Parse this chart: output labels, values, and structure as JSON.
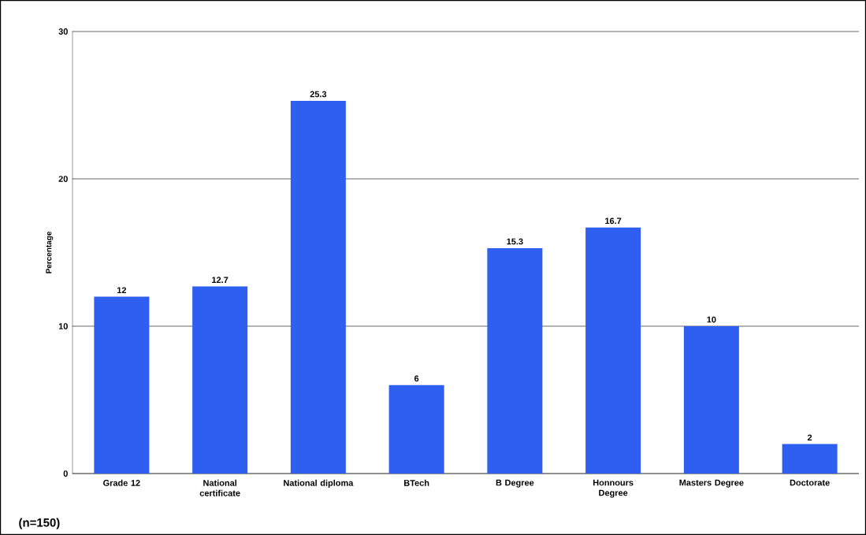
{
  "chart_data": {
    "type": "bar",
    "ylabel": "Percentage",
    "categories": [
      "Grade 12",
      "National certificate",
      "National diploma",
      "BTech",
      "B Degree",
      "Honnours Degree",
      "Masters Degree",
      "Doctorate"
    ],
    "values": [
      12,
      12.7,
      25.3,
      6,
      15.3,
      16.7,
      10,
      2
    ],
    "color": "#2f5ff0",
    "ylim": [
      0,
      30
    ],
    "yticks": [
      0,
      10,
      20,
      30
    ],
    "grid": "y",
    "data_labels": true,
    "annotations": [
      "(n=150)"
    ]
  }
}
